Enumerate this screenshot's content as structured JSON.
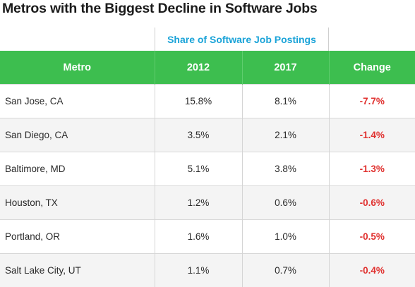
{
  "title": "Metros with the Biggest Decline in Software Jobs",
  "group_header": "Share of Software Job Postings",
  "colors": {
    "header_bg": "#3dbe4f",
    "group_header": "#1aa3d8",
    "negative": "#e0312f",
    "stripe": "#f4f4f4"
  },
  "chart_data": {
    "type": "table",
    "title": "Metros with the Biggest Decline in Software Jobs",
    "columns": [
      "Metro",
      "2012",
      "2017",
      "Change"
    ],
    "rows": [
      [
        "San Jose, CA",
        "15.8%",
        "8.1%",
        "-7.7%"
      ],
      [
        "San Diego, CA",
        "3.5%",
        "2.1%",
        "-1.4%"
      ],
      [
        "Baltimore, MD",
        "5.1%",
        "3.8%",
        "-1.3%"
      ],
      [
        "Houston, TX",
        "1.2%",
        "0.6%",
        "-0.6%"
      ],
      [
        "Portland, OR",
        "1.6%",
        "1.0%",
        "-0.5%"
      ],
      [
        "Salt Lake City, UT",
        "1.1%",
        "0.7%",
        "-0.4%"
      ]
    ]
  }
}
